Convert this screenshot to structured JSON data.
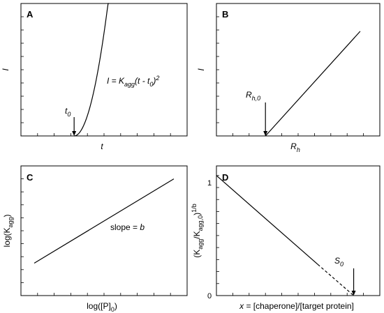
{
  "chart_data": [
    {
      "id": "A",
      "type": "line",
      "panel_letter": "A",
      "xlabel": "t",
      "ylabel": "I",
      "equation": {
        "lhs": "I = K",
        "sub1": "agg",
        "mid": "(t - t",
        "sub2": "0",
        "end": ")",
        "sup": "2"
      },
      "marker": {
        "main": "t",
        "sub": "0"
      },
      "xlim": [
        0,
        10
      ],
      "ylim": [
        0,
        10
      ],
      "x_ticks": [
        1,
        2,
        3,
        4,
        5,
        6,
        7,
        8,
        9,
        10
      ],
      "y_ticks": [
        1,
        2,
        3,
        4,
        5,
        6,
        7,
        8,
        9,
        10
      ],
      "t0": 3.2,
      "curve_k": 2.4,
      "curve_x_end": 5.3
    },
    {
      "id": "B",
      "type": "line",
      "panel_letter": "B",
      "xlabel": {
        "main": "R",
        "sub": "h"
      },
      "ylabel": "I",
      "marker": {
        "main": "R",
        "sub": "h,0"
      },
      "xlim": [
        0,
        10
      ],
      "ylim": [
        0,
        10
      ],
      "x_ticks": [
        1,
        2,
        3,
        4,
        5,
        6,
        7,
        8,
        9,
        10
      ],
      "y_ticks": [
        1,
        2,
        3,
        4,
        5,
        6,
        7,
        8,
        9,
        10
      ],
      "x": [
        3.0,
        8.8
      ],
      "y": [
        0,
        7.9
      ]
    },
    {
      "id": "C",
      "type": "line",
      "panel_letter": "C",
      "xlabel": {
        "main": "log([P]",
        "sub": "0",
        "end": ")"
      },
      "ylabel": {
        "main": "log(K",
        "sub": "agg",
        "end": ")"
      },
      "annotation": {
        "main": "slope = ",
        "ital": "b"
      },
      "xlim": [
        0,
        10
      ],
      "ylim": [
        0,
        10
      ],
      "x_ticks": [
        1,
        2,
        3,
        4,
        5,
        6,
        7,
        8,
        9,
        10
      ],
      "y_ticks": [
        1,
        2,
        3,
        4,
        5,
        6,
        7,
        8,
        9,
        10
      ],
      "x": [
        0.8,
        9.2
      ],
      "y": [
        2.5,
        9.0
      ]
    },
    {
      "id": "D",
      "type": "line",
      "panel_letter": "D",
      "xlabel": {
        "ital": "x",
        "main": " = [chaperone]/[target protein]"
      },
      "ylabel": {
        "open": "(K",
        "sub1": "agg",
        "mid": "/K",
        "sub2": "agg,0",
        "close": ")",
        "sup": "1/b"
      },
      "marker": {
        "main": "S",
        "sub": "0"
      },
      "xlim": [
        0,
        10
      ],
      "ylim": [
        0,
        1.08
      ],
      "y_tick_labels": [
        "0",
        "1"
      ],
      "x_ticks": [
        1,
        2,
        3,
        4,
        5,
        6,
        7,
        8,
        9,
        10
      ],
      "y_ticks": [
        0.1,
        0.2,
        0.3,
        0.4,
        0.5,
        0.6,
        0.7,
        0.8,
        0.9,
        1.0
      ],
      "solid": {
        "x": [
          0,
          6.2
        ],
        "y": [
          1,
          0.26
        ]
      },
      "dashed": {
        "x": [
          6.2,
          8.4
        ],
        "y": [
          0.26,
          0
        ]
      }
    }
  ]
}
